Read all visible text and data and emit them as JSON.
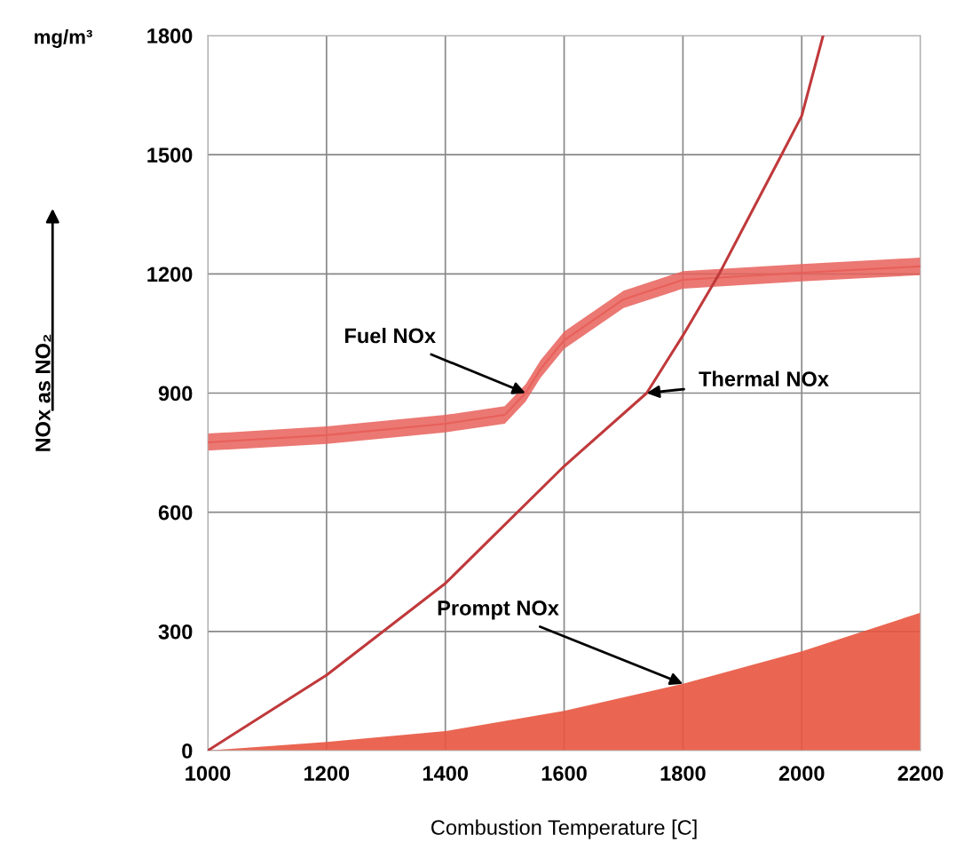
{
  "chart_data": {
    "type": "line",
    "xlabel": "Combustion Temperature [C]",
    "ylabel": "NOx as NO₂",
    "xlim": [
      1000,
      2200
    ],
    "xticks": [
      1000,
      1200,
      1400,
      1600,
      1800,
      2000,
      2200
    ],
    "ylim": [
      0,
      1800
    ],
    "yticks": [
      0,
      300,
      600,
      900,
      1200,
      1500,
      1800
    ],
    "grid": true,
    "marker": "none",
    "line_style": "solid",
    "series": [
      {
        "type": "area",
        "color": "#e8553f",
        "x": [
          1000,
          1200,
          1400,
          1600,
          1800,
          2000,
          2200
        ],
        "values": [
          0,
          22,
          49,
          100,
          168,
          250,
          347
        ]
      },
      {
        "type": "line",
        "color": "#e8605a",
        "x": [
          1000,
          1200,
          1400,
          1500,
          1535,
          1560,
          1600,
          1700,
          1800,
          2000,
          2200
        ],
        "values": [
          776,
          794,
          823,
          845,
          900,
          960,
          1033,
          1136,
          1185,
          1203,
          1219
        ],
        "lower": [
          755,
          772,
          801,
          823,
          878,
          938,
          1011,
          1114,
          1163,
          1181,
          1197
        ],
        "upper": [
          798,
          816,
          845,
          867,
          922,
          982,
          1055,
          1158,
          1207,
          1225,
          1241
        ]
      },
      {
        "color": "#c0393b",
        "x": [
          1000,
          1200,
          1400,
          1600,
          1739,
          1800,
          1861,
          1966,
          2000,
          2036
        ],
        "values": [
          0,
          190,
          421,
          716,
          900,
          1045,
          1200,
          1500,
          1598,
          1800
        ]
      }
    ],
    "annotations": [
      "mg/m³",
      {
        "text": "Fuel NOx",
        "x": 1535,
        "y": 900
      },
      {
        "text": "Thermal NOx",
        "x": 1739,
        "y": 900
      },
      {
        "text": "Prompt NOx",
        "x": 1800,
        "y": 168
      }
    ]
  }
}
